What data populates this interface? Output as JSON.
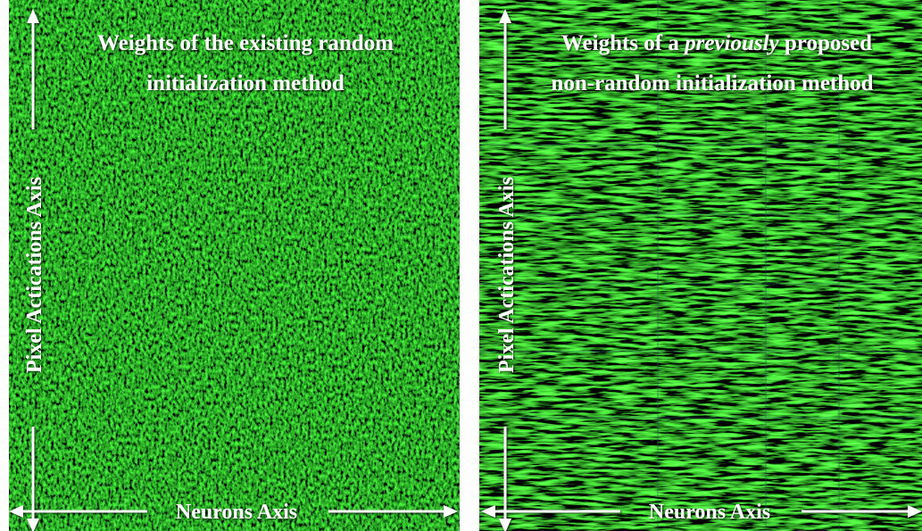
{
  "panels": [
    {
      "title_line_1": "Weights of the existing random",
      "title_line_2": "initialization method",
      "y_axis_label": "Pixel Actications Axis",
      "x_axis_label": "Neurons Axis"
    },
    {
      "title_line_1": {
        "before": "Weights of a ",
        "emphasis": "previously",
        "after": " proposed"
      },
      "title_line_2": "non-random initialization method",
      "y_axis_label": "Pixel Actications Axis",
      "x_axis_label": "Neurons Axis"
    }
  ]
}
